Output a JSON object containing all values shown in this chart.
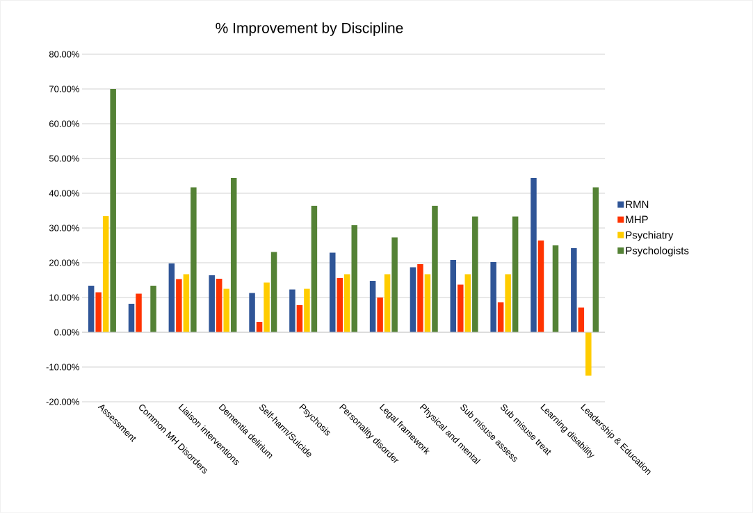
{
  "chart_data": {
    "type": "bar",
    "title": "% Improvement by Discipline",
    "categories": [
      "Assessment",
      "Common MH Disorders",
      "Liaison interventions",
      "Dementia delirium",
      "Self-harm/Suicide",
      "Psychosis",
      "Personality disorder",
      "Legal framework",
      "Physical and mental",
      "Sub misuse assess",
      "Sub misuse treat",
      "Learning disability",
      "Leadership & Education"
    ],
    "series": [
      {
        "name": "RMN",
        "color": "#2f5597",
        "values": [
          13.4,
          8.2,
          19.8,
          16.4,
          11.3,
          12.3,
          22.9,
          14.8,
          18.7,
          20.8,
          20.2,
          44.4,
          24.2
        ]
      },
      {
        "name": "MHP",
        "color": "#ff3300",
        "values": [
          11.5,
          11.1,
          15.3,
          15.4,
          3.0,
          7.8,
          15.6,
          10.0,
          19.6,
          13.7,
          8.6,
          26.4,
          7.1
        ]
      },
      {
        "name": "Psychiatry",
        "color": "#ffcc00",
        "values": [
          33.4,
          null,
          16.7,
          12.5,
          14.3,
          12.5,
          16.7,
          16.7,
          16.7,
          16.7,
          16.7,
          null,
          -12.5
        ]
      },
      {
        "name": "Psychologists",
        "color": "#548235",
        "values": [
          70.0,
          13.4,
          41.7,
          44.4,
          23.1,
          36.4,
          30.8,
          27.3,
          36.4,
          33.3,
          33.3,
          25.0,
          41.7
        ]
      }
    ],
    "ylim": [
      -20,
      80
    ],
    "yticks": [
      {
        "value": -20,
        "label": "-20.00%"
      },
      {
        "value": -10,
        "label": "-10.00%"
      },
      {
        "value": 0,
        "label": "0.00%"
      },
      {
        "value": 10,
        "label": "10.00%"
      },
      {
        "value": 20,
        "label": "20.00%"
      },
      {
        "value": 30,
        "label": "30.00%"
      },
      {
        "value": 40,
        "label": "40.00%"
      },
      {
        "value": 50,
        "label": "50.00%"
      },
      {
        "value": 60,
        "label": "60.00%"
      },
      {
        "value": 70,
        "label": "70.00%"
      },
      {
        "value": 80,
        "label": "80.00%"
      }
    ],
    "grid": "y",
    "legend": "right"
  }
}
